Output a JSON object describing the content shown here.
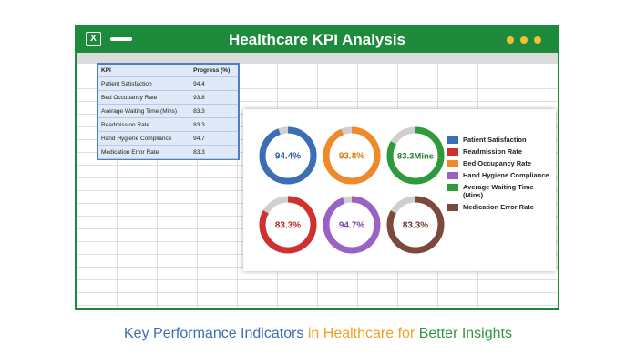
{
  "window": {
    "title": "Healthcare KPI Analysis",
    "app_icon": "excel-icon",
    "menu_icon": "menu-bar-icon",
    "dot_color": "#f2c230",
    "frame_color": "#1e8a3c"
  },
  "table": {
    "headers": [
      "KPI",
      "Progress (%)"
    ],
    "rows": [
      {
        "kpi": "Patient Satisfaction",
        "value": "94.4"
      },
      {
        "kpi": "Bed Occupancy Rate",
        "value": "93.8"
      },
      {
        "kpi": "Average Waiting Time (Mins)",
        "value": "83.3"
      },
      {
        "kpi": "Readmission Rate",
        "value": "83.3"
      },
      {
        "kpi": "Hand Hygiene Compliance",
        "value": "94.7"
      },
      {
        "kpi": "Medication Error Rate",
        "value": "83.3"
      }
    ]
  },
  "donuts": [
    {
      "label": "94.4%",
      "value": 94.4,
      "color": "#3a6fb6",
      "text_color": "#2e5f9e"
    },
    {
      "label": "93.8%",
      "value": 93.8,
      "color": "#f0892a",
      "text_color": "#e07a1a"
    },
    {
      "label": "83.3Mins",
      "value": 83.3,
      "color": "#2f9a3c",
      "text_color": "#1f8030"
    },
    {
      "label": "83.3%",
      "value": 83.3,
      "color": "#cf3030",
      "text_color": "#b82424"
    },
    {
      "label": "94.7%",
      "value": 94.7,
      "color": "#9b62c4",
      "text_color": "#7d46a8"
    },
    {
      "label": "83.3%",
      "value": 83.3,
      "color": "#7b4a3c",
      "text_color": "#6a3c30"
    }
  ],
  "donut_remainder_color": "#d0d0d0",
  "legend": [
    {
      "label": "Patient Satisfaction",
      "color": "#3a6fb6"
    },
    {
      "label": "Readmission Rate",
      "color": "#cf3030"
    },
    {
      "label": "Bed Occupancy Rate",
      "color": "#f0892a"
    },
    {
      "label": "Hand Hygiene Compliance",
      "color": "#9b62c4"
    },
    {
      "label": "Average Waiting Time (Mins)",
      "color": "#2f9a3c"
    },
    {
      "label": "Medication Error Rate",
      "color": "#7b4a3c"
    }
  ],
  "caption": {
    "part1": "Key Performance Indicators",
    "part2": " in Healthcare for ",
    "part3": "Better Insights",
    "color1": "#3a6fb6",
    "color2": "#f0a020",
    "color3": "#2f9a3c"
  }
}
